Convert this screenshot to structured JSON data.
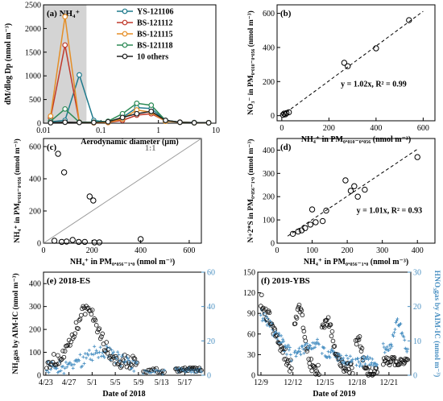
{
  "chart_data": [
    {
      "panel": "(a) NH₄⁺",
      "type": "line",
      "xscale": "log",
      "xlabel": "Aerodynamic diameter (µm)",
      "ylabel": "dM/dlog Dp (nmol m⁻³)",
      "xlim": [
        0.01,
        10
      ],
      "ylim": [
        0,
        2500
      ],
      "xticks": [
        0.01,
        0.1,
        1,
        10
      ],
      "xtick_labels": [
        "0.01",
        "0.1",
        "1",
        "10"
      ],
      "yticks": [
        0,
        500,
        1000,
        1500,
        2000,
        2500
      ],
      "shaded_region": [
        0.01,
        0.056
      ],
      "x": [
        0.0133,
        0.0237,
        0.042,
        0.075,
        0.133,
        0.237,
        0.42,
        0.75,
        1.33,
        2.37,
        4.2,
        7.5
      ],
      "series": [
        {
          "name": "YS-121106",
          "color": "#1f7a8c",
          "values": [
            30,
            60,
            1020,
            60,
            20,
            120,
            330,
            310,
            60,
            20,
            15,
            10
          ]
        },
        {
          "name": "BS-121112",
          "color": "#c0392b",
          "values": [
            110,
            1650,
            20,
            10,
            15,
            60,
            170,
            200,
            50,
            20,
            10,
            10
          ]
        },
        {
          "name": "BS-121115",
          "color": "#e58e26",
          "values": [
            150,
            2250,
            20,
            10,
            15,
            90,
            280,
            230,
            40,
            20,
            10,
            10
          ]
        },
        {
          "name": "BS-121118",
          "color": "#2e8b57",
          "values": [
            40,
            300,
            20,
            20,
            40,
            200,
            420,
            380,
            60,
            20,
            10,
            10
          ]
        },
        {
          "name": "10 others",
          "color": "#222222",
          "values": [
            10,
            20,
            15,
            15,
            30,
            120,
            200,
            250,
            60,
            20,
            10,
            10
          ]
        }
      ]
    },
    {
      "panel": "(b)",
      "type": "scatter",
      "xlabel": "NH₄⁺ in PM₀.₀₁₀₋₀.₀₅₆ (nmol m⁻³)",
      "ylabel": "NO₃⁻ in PM₀.₀₁₀₋₀.₀₅₆ (nmol m⁻³)",
      "xlim": [
        -20,
        650
      ],
      "ylim": [
        -30,
        650
      ],
      "xticks": [
        0,
        200,
        400,
        600
      ],
      "yticks": [
        0,
        200,
        400,
        600
      ],
      "annotation": "y = 1.02x, R² = 0.99",
      "fit_slope": 1.02,
      "points": [
        [
          5,
          5
        ],
        [
          10,
          12
        ],
        [
          15,
          8
        ],
        [
          20,
          15
        ],
        [
          30,
          20
        ],
        [
          265,
          310
        ],
        [
          280,
          290
        ],
        [
          400,
          395
        ],
        [
          540,
          560
        ]
      ]
    },
    {
      "panel": "(c)",
      "type": "scatter",
      "xlabel": "NH₄⁺ in PM₀.₀₅₆₋₁.₀ (nmol m⁻³)",
      "ylabel": "NH₄⁺ in PM₀.₀₁₀₋₀.₀₅₆ (nmol m⁻³)",
      "xlim": [
        0,
        650
      ],
      "ylim": [
        0,
        650
      ],
      "xticks": [
        0,
        200,
        400,
        600
      ],
      "yticks": [
        0,
        200,
        400,
        600
      ],
      "reference_line_label": "1:1",
      "points": [
        [
          45,
          15
        ],
        [
          60,
          555
        ],
        [
          75,
          8
        ],
        [
          85,
          440
        ],
        [
          95,
          10
        ],
        [
          120,
          20
        ],
        [
          145,
          8
        ],
        [
          170,
          8
        ],
        [
          190,
          290
        ],
        [
          205,
          265
        ],
        [
          210,
          5
        ],
        [
          230,
          5
        ],
        [
          400,
          25
        ]
      ]
    },
    {
      "panel": "(d)",
      "type": "scatter",
      "xlabel": "NH₄⁺ in PM₀.₀₅₆₋₁.₀ (nmol m⁻³)",
      "ylabel": "N+2*S in PM₀.₀₅₆₋₁.₀ (nmol m⁻³)",
      "xlim": [
        0,
        450
      ],
      "ylim": [
        0,
        450
      ],
      "xticks": [
        0,
        100,
        200,
        300,
        400
      ],
      "yticks": [
        0,
        100,
        200,
        300,
        400
      ],
      "annotation": "y = 1.01x, R² = 0.93",
      "fit_slope": 1.01,
      "points": [
        [
          45,
          40
        ],
        [
          60,
          50
        ],
        [
          70,
          55
        ],
        [
          80,
          65
        ],
        [
          95,
          80
        ],
        [
          100,
          145
        ],
        [
          110,
          90
        ],
        [
          130,
          95
        ],
        [
          140,
          140
        ],
        [
          195,
          270
        ],
        [
          210,
          225
        ],
        [
          220,
          245
        ],
        [
          230,
          200
        ],
        [
          250,
          230
        ],
        [
          400,
          370
        ]
      ]
    },
    {
      "panel": "(e) 2018-ES",
      "type": "scatter",
      "xlabel": "Date of 2018",
      "ylabel": "NH₃gas by AIM-IC (nmol m⁻³)",
      "ylim_left": [
        0,
        450
      ],
      "ylim_right": [
        0,
        60
      ],
      "xticks": [
        "4/23",
        "4/27",
        "5/1",
        "5/5",
        "5/9",
        "5/13",
        "5/17"
      ],
      "yticks_left": [
        0,
        100,
        200,
        300,
        400
      ],
      "yticks_right": [
        0,
        20,
        40,
        60
      ],
      "series": [
        {
          "name": "NH₃",
          "marker": "open circle",
          "color": "#111111"
        },
        {
          "name": "HNO₃",
          "marker": "plus",
          "color": "#4a90c2"
        }
      ]
    },
    {
      "panel": "(f) 2019-YBS",
      "type": "scatter",
      "xlabel": "Date of 2019",
      "ylabel_right": "HNO₃gas by AIM-IC (nmol m⁻³)",
      "ylim_left": [
        0,
        150
      ],
      "ylim_right": [
        0,
        30
      ],
      "xticks": [
        "12/9",
        "12/12",
        "12/15",
        "12/18",
        "12/21"
      ],
      "yticks_left": [
        0,
        30,
        60,
        90,
        120,
        150
      ],
      "yticks_right": [
        0,
        10,
        20,
        30
      ],
      "series": [
        {
          "name": "NH₃",
          "marker": "open circle",
          "color": "#111111"
        },
        {
          "name": "HNO₃",
          "marker": "plus",
          "color": "#4a90c2"
        }
      ]
    }
  ]
}
